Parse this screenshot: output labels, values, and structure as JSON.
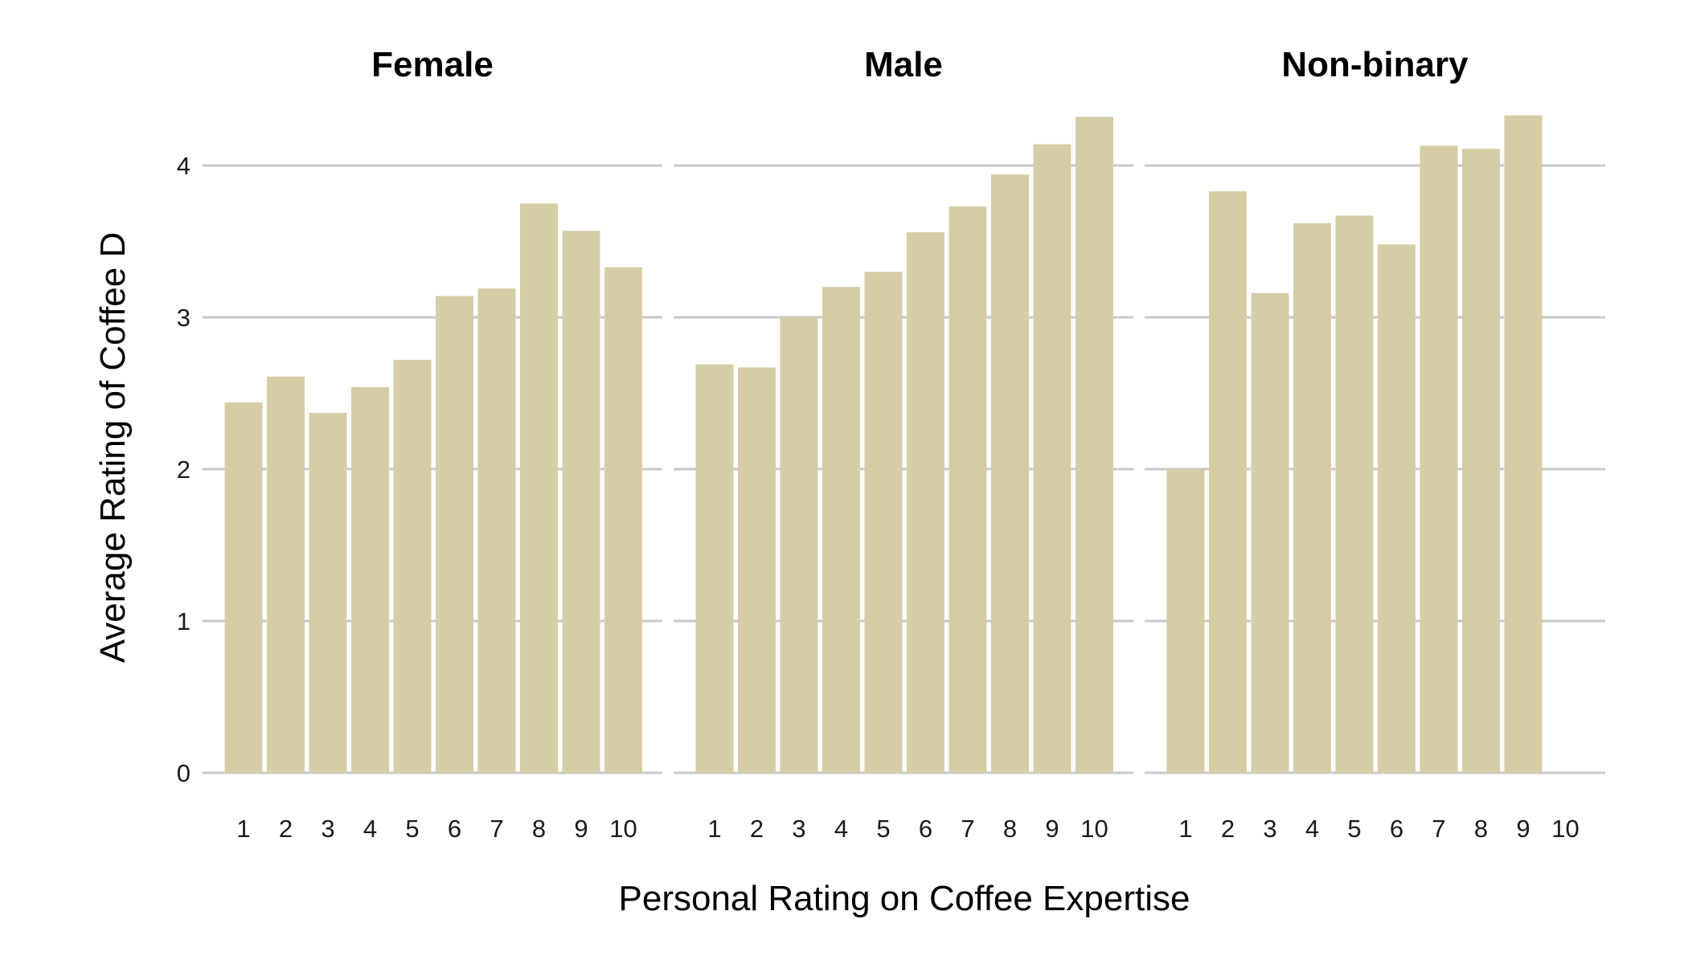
{
  "chart_data": {
    "type": "bar",
    "facet_labels": [
      "Female",
      "Male",
      "Non-binary"
    ],
    "categories": [
      "1",
      "2",
      "3",
      "4",
      "5",
      "6",
      "7",
      "8",
      "9",
      "10"
    ],
    "xlabel": "Personal Rating on Coffee Expertise",
    "ylabel": "Average Rating of Coffee D",
    "ylim": [
      0,
      4.35
    ],
    "yticks": [
      0,
      1,
      2,
      3,
      4
    ],
    "grid": "horizontal",
    "bar_color": "#d6cda6",
    "gridline_color": "#c8c8c8",
    "series": [
      {
        "facet": "Female",
        "values": [
          2.44,
          2.61,
          2.37,
          2.54,
          2.72,
          3.14,
          3.19,
          3.75,
          3.57,
          3.33
        ]
      },
      {
        "facet": "Male",
        "values": [
          2.69,
          2.67,
          3.0,
          3.2,
          3.3,
          3.56,
          3.73,
          3.94,
          4.14,
          4.32
        ]
      },
      {
        "facet": "Non-binary",
        "values": [
          2.0,
          3.83,
          3.16,
          3.62,
          3.67,
          3.48,
          4.13,
          4.11,
          4.33,
          null
        ]
      }
    ]
  }
}
